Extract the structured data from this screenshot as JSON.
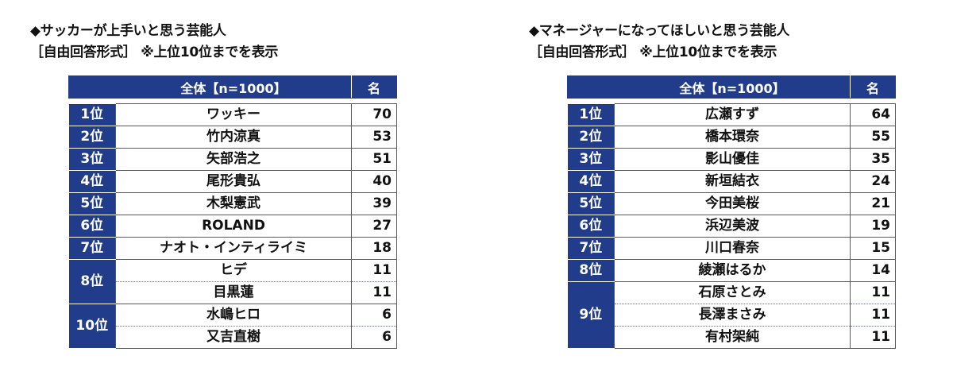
{
  "left": {
    "title": "◆サッカーが上手いと思う芸能人",
    "subtitle": "［自由回答形式］ ※上位10位までを表示",
    "header": {
      "name": "全体【n=1000】",
      "value": "名"
    },
    "rows": [
      {
        "rank": "1位",
        "name": "ワッキー",
        "value": "70"
      },
      {
        "rank": "2位",
        "name": "竹内涼真",
        "value": "53"
      },
      {
        "rank": "3位",
        "name": "矢部浩之",
        "value": "51"
      },
      {
        "rank": "4位",
        "name": "尾形貴弘",
        "value": "40"
      },
      {
        "rank": "5位",
        "name": "木梨憲武",
        "value": "39"
      },
      {
        "rank": "6位",
        "name": "ROLAND",
        "value": "27"
      },
      {
        "rank": "7位",
        "name": "ナオト・インティライミ",
        "value": "18"
      },
      {
        "rank": "8位",
        "name": "ヒデ",
        "value": "11"
      },
      {
        "rank": "",
        "name": "目黒蓮",
        "value": "11"
      },
      {
        "rank": "10位",
        "name": "水嶋ヒロ",
        "value": "6"
      },
      {
        "rank": "",
        "name": "又吉直樹",
        "value": "6"
      }
    ]
  },
  "right": {
    "title": "◆マネージャーになってほしいと思う芸能人",
    "subtitle": "［自由回答形式］ ※上位10位までを表示",
    "header": {
      "name": "全体【n=1000】",
      "value": "名"
    },
    "rows": [
      {
        "rank": "1位",
        "name": "広瀬すず",
        "value": "64"
      },
      {
        "rank": "2位",
        "name": "橋本環奈",
        "value": "55"
      },
      {
        "rank": "3位",
        "name": "影山優佳",
        "value": "35"
      },
      {
        "rank": "4位",
        "name": "新垣結衣",
        "value": "24"
      },
      {
        "rank": "5位",
        "name": "今田美桜",
        "value": "21"
      },
      {
        "rank": "6位",
        "name": "浜辺美波",
        "value": "19"
      },
      {
        "rank": "7位",
        "name": "川口春奈",
        "value": "15"
      },
      {
        "rank": "8位",
        "name": "綾瀬はるか",
        "value": "14"
      },
      {
        "rank": "9位",
        "name": "石原さとみ",
        "value": "11"
      },
      {
        "rank": "",
        "name": "長澤まさみ",
        "value": "11"
      },
      {
        "rank": "",
        "name": "有村架純",
        "value": "11"
      }
    ]
  }
}
